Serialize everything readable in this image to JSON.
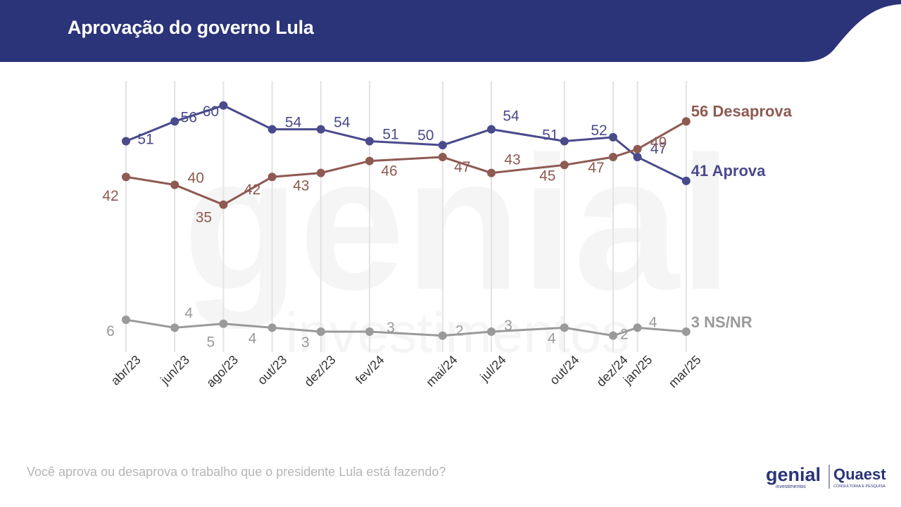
{
  "header": {
    "title": "Aprovação do governo Lula",
    "color": "#2b3478"
  },
  "footer": {
    "question": "Você aprova ou desaprova o trabalho que o presidente Lula está fazendo?"
  },
  "logos": {
    "genial": "genial",
    "genial_sub": "investimentos",
    "quaest": "Quaest",
    "quaest_sub": "CONSULTORIA E PESQUISA"
  },
  "watermark": {
    "word": "genial",
    "sub": "investimentos"
  },
  "chart_data": {
    "type": "line",
    "categories": [
      "abr/23",
      "jun/23",
      "ago/23",
      "out/23",
      "dez/23",
      "fev/24",
      "mai/24",
      "jul/24",
      "out/24",
      "dez/24",
      "jan/25",
      "mar/25"
    ],
    "x_month_index": [
      0,
      2,
      4,
      6,
      8,
      10,
      13,
      15,
      18,
      20,
      21,
      23
    ],
    "series": [
      {
        "name": "Aprova",
        "end_label": "41 Aprova",
        "color": "#4a4a8c",
        "values": [
          51,
          56,
          60,
          54,
          54,
          51,
          50,
          54,
          51,
          52,
          47,
          41
        ],
        "value_labels": [
          "51",
          "56",
          "60",
          "54",
          "54",
          "51",
          "50",
          "54",
          "51",
          "52",
          "47",
          ""
        ]
      },
      {
        "name": "Desaprova",
        "end_label": "56 Desaprova",
        "color": "#8e5a52",
        "values": [
          42,
          40,
          35,
          42,
          43,
          46,
          47,
          43,
          45,
          47,
          49,
          56
        ],
        "value_labels": [
          "42",
          "40",
          "35",
          "42",
          "43",
          "46",
          "47",
          "43",
          "45",
          "47",
          "49",
          ""
        ]
      },
      {
        "name": "NS/NR",
        "end_label": "3 NS/NR",
        "color": "#9a9a9a",
        "values": [
          6,
          4,
          5,
          4,
          3,
          3,
          2,
          3,
          4,
          2,
          4,
          3
        ],
        "value_labels": [
          "6",
          "4",
          "5",
          "4",
          "3",
          "3",
          "2",
          "3",
          "4",
          "2",
          "4",
          ""
        ]
      }
    ],
    "grid": "vertical"
  }
}
